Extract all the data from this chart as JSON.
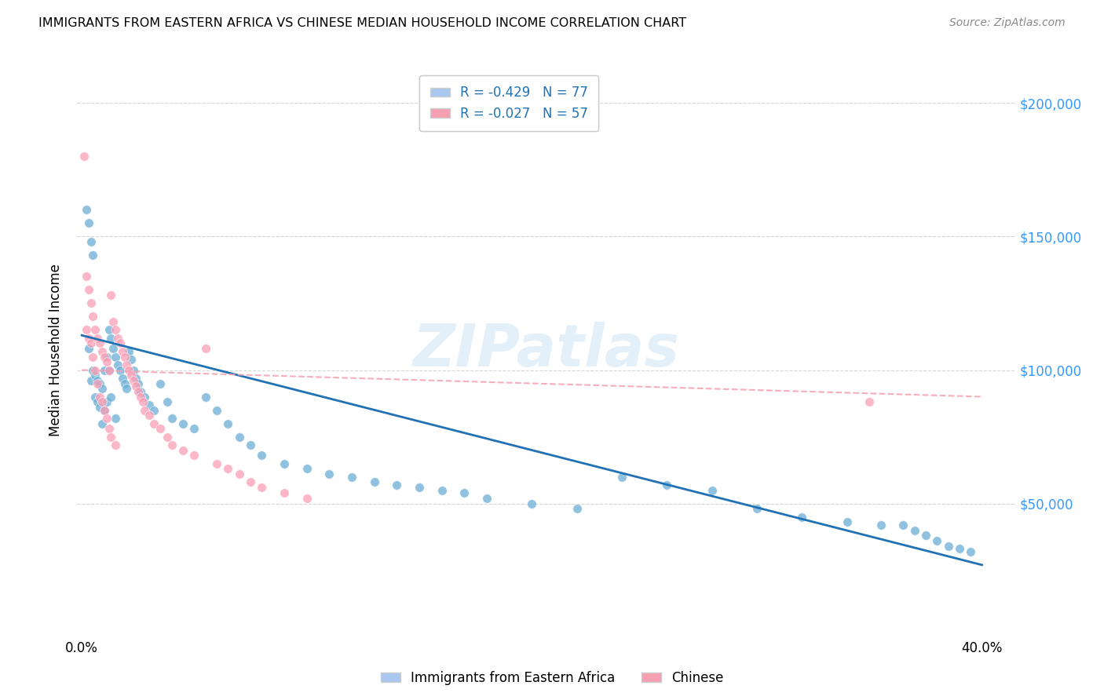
{
  "title": "IMMIGRANTS FROM EASTERN AFRICA VS CHINESE MEDIAN HOUSEHOLD INCOME CORRELATION CHART",
  "source": "Source: ZipAtlas.com",
  "ylabel": "Median Household Income",
  "watermark": "ZIPatlas",
  "legend_entries": [
    {
      "label": "R = -0.429   N = 77",
      "color": "#a8c8f0"
    },
    {
      "label": "R = -0.027   N = 57",
      "color": "#f4a0b0"
    }
  ],
  "legend_bottom": [
    {
      "label": "Immigrants from Eastern Africa",
      "color": "#a8c8f0"
    },
    {
      "label": "Chinese",
      "color": "#f4a0b0"
    }
  ],
  "blue_scatter_x": [
    0.002,
    0.003,
    0.003,
    0.004,
    0.004,
    0.005,
    0.005,
    0.006,
    0.006,
    0.007,
    0.007,
    0.008,
    0.008,
    0.009,
    0.009,
    0.01,
    0.01,
    0.011,
    0.011,
    0.012,
    0.012,
    0.013,
    0.013,
    0.014,
    0.015,
    0.015,
    0.016,
    0.017,
    0.018,
    0.019,
    0.02,
    0.021,
    0.022,
    0.023,
    0.024,
    0.025,
    0.026,
    0.028,
    0.03,
    0.032,
    0.035,
    0.038,
    0.04,
    0.045,
    0.05,
    0.055,
    0.06,
    0.065,
    0.07,
    0.075,
    0.08,
    0.09,
    0.1,
    0.11,
    0.12,
    0.13,
    0.14,
    0.15,
    0.16,
    0.17,
    0.18,
    0.2,
    0.22,
    0.24,
    0.26,
    0.28,
    0.3,
    0.32,
    0.34,
    0.355,
    0.365,
    0.37,
    0.375,
    0.38,
    0.385,
    0.39,
    0.395
  ],
  "blue_scatter_y": [
    160000,
    155000,
    108000,
    148000,
    96000,
    143000,
    100000,
    98000,
    90000,
    96000,
    88000,
    86000,
    95000,
    93000,
    80000,
    100000,
    85000,
    105000,
    88000,
    115000,
    100000,
    112000,
    90000,
    108000,
    105000,
    82000,
    102000,
    100000,
    97000,
    95000,
    93000,
    107000,
    104000,
    100000,
    97000,
    95000,
    92000,
    90000,
    87000,
    85000,
    95000,
    88000,
    82000,
    80000,
    78000,
    90000,
    85000,
    80000,
    75000,
    72000,
    68000,
    65000,
    63000,
    61000,
    60000,
    58000,
    57000,
    56000,
    55000,
    54000,
    52000,
    50000,
    48000,
    60000,
    57000,
    55000,
    48000,
    45000,
    43000,
    42000,
    42000,
    40000,
    38000,
    36000,
    34000,
    33000,
    32000
  ],
  "pink_scatter_x": [
    0.001,
    0.002,
    0.002,
    0.003,
    0.003,
    0.004,
    0.004,
    0.005,
    0.005,
    0.006,
    0.006,
    0.007,
    0.007,
    0.008,
    0.008,
    0.009,
    0.009,
    0.01,
    0.01,
    0.011,
    0.011,
    0.012,
    0.012,
    0.013,
    0.013,
    0.014,
    0.015,
    0.015,
    0.016,
    0.017,
    0.018,
    0.019,
    0.02,
    0.021,
    0.022,
    0.023,
    0.024,
    0.025,
    0.026,
    0.027,
    0.028,
    0.03,
    0.032,
    0.035,
    0.038,
    0.04,
    0.045,
    0.05,
    0.055,
    0.06,
    0.065,
    0.07,
    0.075,
    0.08,
    0.09,
    0.1,
    0.35
  ],
  "pink_scatter_y": [
    180000,
    135000,
    115000,
    130000,
    112000,
    125000,
    110000,
    120000,
    105000,
    115000,
    100000,
    112000,
    95000,
    110000,
    90000,
    107000,
    88000,
    105000,
    85000,
    103000,
    82000,
    100000,
    78000,
    128000,
    75000,
    118000,
    115000,
    72000,
    112000,
    110000,
    107000,
    105000,
    102000,
    100000,
    98000,
    96000,
    94000,
    92000,
    90000,
    88000,
    85000,
    83000,
    80000,
    78000,
    75000,
    72000,
    70000,
    68000,
    108000,
    65000,
    63000,
    61000,
    58000,
    56000,
    54000,
    52000,
    88000
  ],
  "blue_line_x": [
    0.0,
    0.4
  ],
  "blue_line_y": [
    113000,
    27000
  ],
  "pink_line_x": [
    0.0,
    0.4
  ],
  "pink_line_y": [
    100000,
    90000
  ],
  "blue_dot_color": "#6baed6",
  "pink_dot_color": "#fa9fb5",
  "blue_line_color": "#2171b5",
  "pink_line_color": "#f4a0b0",
  "grid_color": "#cccccc",
  "ytick_color": "#3399ff",
  "background_color": "#ffffff",
  "xlim": [
    -0.002,
    0.415
  ],
  "ylim": [
    0,
    215000
  ],
  "ytick_vals": [
    0,
    50000,
    100000,
    150000,
    200000
  ],
  "ytick_labels": [
    "",
    "$50,000",
    "$100,000",
    "$150,000",
    "$200,000"
  ]
}
